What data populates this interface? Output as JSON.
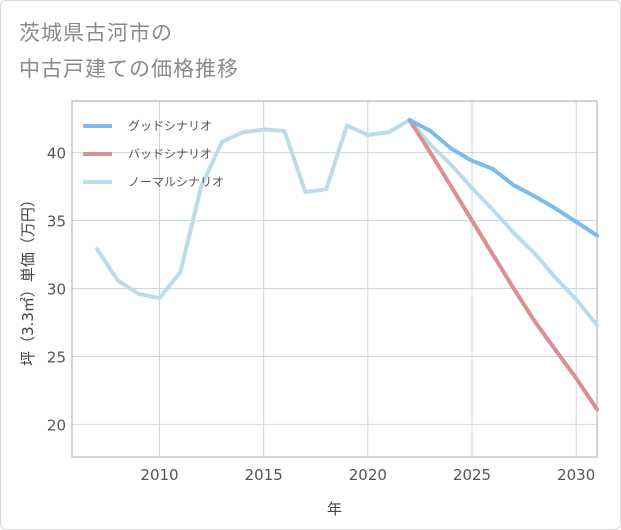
{
  "title_lines": [
    "茨城県古河市の",
    "中古戸建ての価格推移"
  ],
  "chart_data": {
    "type": "line",
    "xlabel": "年",
    "ylabel": "坪（3.3㎡）単価（万円）",
    "xlim": [
      2005.8,
      2031
    ],
    "ylim": [
      17.6,
      43.8
    ],
    "xticks": [
      2010,
      2015,
      2020,
      2025,
      2030
    ],
    "yticks": [
      20,
      25,
      30,
      35,
      40
    ],
    "grid": true,
    "legend_position": "top-left",
    "series": [
      {
        "name": "グッドシナリオ",
        "color": "#7bbcea",
        "x": [
          2022,
          2023,
          2024,
          2025,
          2026,
          2027,
          2028,
          2029,
          2030,
          2031
        ],
        "y": [
          42.4,
          41.6,
          40.3,
          39.4,
          38.8,
          37.6,
          36.8,
          35.9,
          34.9,
          33.9
        ]
      },
      {
        "name": "バッドシナリオ",
        "color": "#da8f95",
        "x": [
          2022,
          2023,
          2024,
          2025,
          2026,
          2027,
          2028,
          2029,
          2030,
          2031
        ],
        "y": [
          42.4,
          40.0,
          37.5,
          35.0,
          32.5,
          30.0,
          27.6,
          25.5,
          23.4,
          21.1
        ]
      },
      {
        "name": "ノーマルシナリオ",
        "color": "#bcdcea",
        "x": [
          2007,
          2008,
          2009,
          2010,
          2011,
          2012,
          2013,
          2014,
          2015,
          2016,
          2017,
          2018,
          2019,
          2020,
          2021,
          2022,
          2023,
          2024,
          2025,
          2026,
          2027,
          2028,
          2029,
          2030,
          2031
        ],
        "y": [
          32.9,
          30.6,
          29.6,
          29.3,
          31.2,
          37.5,
          40.8,
          41.5,
          41.7,
          41.6,
          37.1,
          37.3,
          42.0,
          41.3,
          41.5,
          42.4,
          40.6,
          39.1,
          37.4,
          35.8,
          34.1,
          32.6,
          30.8,
          29.2,
          27.3
        ]
      }
    ]
  }
}
